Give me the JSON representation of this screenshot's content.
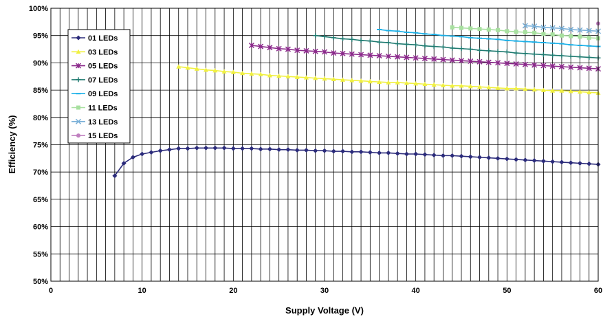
{
  "chart_data": {
    "type": "line",
    "title": "",
    "xlabel": "Supply Voltage (V)",
    "ylabel": "Efficiency (%)",
    "xlim": [
      0,
      60
    ],
    "ylim": [
      50,
      100
    ],
    "x_ticks": [
      0,
      10,
      20,
      30,
      40,
      50,
      60
    ],
    "y_ticks": [
      "50%",
      "55%",
      "60%",
      "65%",
      "70%",
      "75%",
      "80%",
      "85%",
      "90%",
      "95%",
      "100%"
    ],
    "grid": true,
    "legend_position": "left, upper-middle",
    "series": [
      {
        "name": "01 LEDs",
        "color": "#2b2b7a",
        "marker": "diamond",
        "points": [
          [
            7,
            69.3
          ],
          [
            8,
            71.6
          ],
          [
            9,
            72.7
          ],
          [
            10,
            73.3
          ],
          [
            11,
            73.6
          ],
          [
            12,
            73.9
          ],
          [
            13,
            74.1
          ],
          [
            14,
            74.3
          ],
          [
            15,
            74.3
          ],
          [
            16,
            74.4
          ],
          [
            17,
            74.4
          ],
          [
            18,
            74.4
          ],
          [
            19,
            74.4
          ],
          [
            20,
            74.3
          ],
          [
            21,
            74.3
          ],
          [
            22,
            74.3
          ],
          [
            23,
            74.2
          ],
          [
            24,
            74.2
          ],
          [
            25,
            74.1
          ],
          [
            26,
            74.1
          ],
          [
            27,
            74.0
          ],
          [
            28,
            74.0
          ],
          [
            29,
            73.9
          ],
          [
            30,
            73.9
          ],
          [
            31,
            73.8
          ],
          [
            32,
            73.8
          ],
          [
            33,
            73.7
          ],
          [
            34,
            73.7
          ],
          [
            35,
            73.6
          ],
          [
            36,
            73.5
          ],
          [
            37,
            73.5
          ],
          [
            38,
            73.4
          ],
          [
            39,
            73.3
          ],
          [
            40,
            73.3
          ],
          [
            41,
            73.2
          ],
          [
            42,
            73.1
          ],
          [
            43,
            73.0
          ],
          [
            44,
            73.0
          ],
          [
            45,
            72.9
          ],
          [
            46,
            72.8
          ],
          [
            47,
            72.7
          ],
          [
            48,
            72.6
          ],
          [
            49,
            72.5
          ],
          [
            50,
            72.4
          ],
          [
            51,
            72.3
          ],
          [
            52,
            72.2
          ],
          [
            53,
            72.1
          ],
          [
            54,
            72.0
          ],
          [
            55,
            71.9
          ],
          [
            56,
            71.8
          ],
          [
            57,
            71.7
          ],
          [
            58,
            71.6
          ],
          [
            59,
            71.5
          ],
          [
            60,
            71.4
          ]
        ]
      },
      {
        "name": "03 LEDs",
        "color": "#f0f040",
        "marker": "triangle",
        "points": [
          [
            14,
            89.3
          ],
          [
            15,
            89.1
          ],
          [
            16,
            88.9
          ],
          [
            17,
            88.7
          ],
          [
            18,
            88.6
          ],
          [
            19,
            88.4
          ],
          [
            20,
            88.3
          ],
          [
            21,
            88.1
          ],
          [
            22,
            88.0
          ],
          [
            23,
            87.9
          ],
          [
            24,
            87.7
          ],
          [
            25,
            87.6
          ],
          [
            26,
            87.5
          ],
          [
            27,
            87.4
          ],
          [
            28,
            87.3
          ],
          [
            29,
            87.2
          ],
          [
            30,
            87.1
          ],
          [
            31,
            87.0
          ],
          [
            32,
            86.9
          ],
          [
            33,
            86.8
          ],
          [
            34,
            86.7
          ],
          [
            35,
            86.6
          ],
          [
            36,
            86.5
          ],
          [
            37,
            86.4
          ],
          [
            38,
            86.4
          ],
          [
            39,
            86.3
          ],
          [
            40,
            86.2
          ],
          [
            41,
            86.1
          ],
          [
            42,
            86.0
          ],
          [
            43,
            85.9
          ],
          [
            44,
            85.8
          ],
          [
            45,
            85.8
          ],
          [
            46,
            85.7
          ],
          [
            47,
            85.6
          ],
          [
            48,
            85.5
          ],
          [
            49,
            85.4
          ],
          [
            50,
            85.3
          ],
          [
            51,
            85.3
          ],
          [
            52,
            85.2
          ],
          [
            53,
            85.1
          ],
          [
            54,
            85.0
          ],
          [
            55,
            84.9
          ],
          [
            56,
            84.9
          ],
          [
            57,
            84.8
          ],
          [
            58,
            84.7
          ],
          [
            59,
            84.6
          ],
          [
            60,
            84.5
          ]
        ]
      },
      {
        "name": "05 LEDs",
        "color": "#8b2a8b",
        "marker": "asterisk",
        "points": [
          [
            22,
            93.2
          ],
          [
            23,
            93.0
          ],
          [
            24,
            92.8
          ],
          [
            25,
            92.6
          ],
          [
            26,
            92.5
          ],
          [
            27,
            92.3
          ],
          [
            28,
            92.2
          ],
          [
            29,
            92.1
          ],
          [
            30,
            92.0
          ],
          [
            31,
            91.8
          ],
          [
            32,
            91.7
          ],
          [
            33,
            91.6
          ],
          [
            34,
            91.5
          ],
          [
            35,
            91.4
          ],
          [
            36,
            91.3
          ],
          [
            37,
            91.2
          ],
          [
            38,
            91.1
          ],
          [
            39,
            91.0
          ],
          [
            40,
            90.9
          ],
          [
            41,
            90.8
          ],
          [
            42,
            90.7
          ],
          [
            43,
            90.6
          ],
          [
            44,
            90.5
          ],
          [
            45,
            90.4
          ],
          [
            46,
            90.3
          ],
          [
            47,
            90.2
          ],
          [
            48,
            90.1
          ],
          [
            49,
            90.0
          ],
          [
            50,
            89.9
          ],
          [
            51,
            89.8
          ],
          [
            52,
            89.7
          ],
          [
            53,
            89.6
          ],
          [
            54,
            89.5
          ],
          [
            55,
            89.4
          ],
          [
            56,
            89.3
          ],
          [
            57,
            89.2
          ],
          [
            58,
            89.1
          ],
          [
            59,
            89.0
          ],
          [
            60,
            88.9
          ]
        ]
      },
      {
        "name": "07 LEDs",
        "color": "#1f7a70",
        "marker": "plus",
        "points": [
          [
            29,
            95.0
          ],
          [
            30,
            94.8
          ],
          [
            31,
            94.6
          ],
          [
            32,
            94.4
          ],
          [
            33,
            94.3
          ],
          [
            34,
            94.1
          ],
          [
            35,
            94.0
          ],
          [
            36,
            93.8
          ],
          [
            37,
            93.7
          ],
          [
            38,
            93.5
          ],
          [
            39,
            93.4
          ],
          [
            40,
            93.3
          ],
          [
            41,
            93.1
          ],
          [
            42,
            93.0
          ],
          [
            43,
            92.9
          ],
          [
            44,
            92.7
          ],
          [
            45,
            92.6
          ],
          [
            46,
            92.5
          ],
          [
            47,
            92.3
          ],
          [
            48,
            92.2
          ],
          [
            49,
            92.1
          ],
          [
            50,
            92.0
          ],
          [
            51,
            91.8
          ],
          [
            52,
            91.7
          ],
          [
            53,
            91.6
          ],
          [
            54,
            91.5
          ],
          [
            55,
            91.4
          ],
          [
            56,
            91.3
          ],
          [
            57,
            91.2
          ],
          [
            58,
            91.1
          ],
          [
            59,
            91.0
          ],
          [
            60,
            90.9
          ]
        ]
      },
      {
        "name": "09 LEDs",
        "color": "#1ab0e8",
        "marker": "dash",
        "points": [
          [
            36,
            96.1
          ],
          [
            37,
            95.9
          ],
          [
            38,
            95.8
          ],
          [
            39,
            95.6
          ],
          [
            40,
            95.5
          ],
          [
            41,
            95.3
          ],
          [
            42,
            95.2
          ],
          [
            43,
            95.0
          ],
          [
            44,
            94.9
          ],
          [
            45,
            94.8
          ],
          [
            46,
            94.6
          ],
          [
            47,
            94.5
          ],
          [
            48,
            94.4
          ],
          [
            49,
            94.3
          ],
          [
            50,
            94.1
          ],
          [
            51,
            94.0
          ],
          [
            52,
            93.9
          ],
          [
            53,
            93.8
          ],
          [
            54,
            93.7
          ],
          [
            55,
            93.6
          ],
          [
            56,
            93.5
          ],
          [
            57,
            93.3
          ],
          [
            58,
            93.2
          ],
          [
            59,
            93.1
          ],
          [
            60,
            93.0
          ]
        ]
      },
      {
        "name": "11 LEDs",
        "color": "#a8e0a0",
        "marker": "square",
        "points": [
          [
            44,
            96.5
          ],
          [
            45,
            96.4
          ],
          [
            46,
            96.3
          ],
          [
            47,
            96.2
          ],
          [
            48,
            96.1
          ],
          [
            49,
            96.0
          ],
          [
            50,
            95.8
          ],
          [
            51,
            95.7
          ],
          [
            52,
            95.6
          ],
          [
            53,
            95.5
          ],
          [
            54,
            95.3
          ],
          [
            55,
            95.2
          ],
          [
            56,
            95.0
          ],
          [
            57,
            94.9
          ],
          [
            58,
            94.8
          ],
          [
            59,
            94.6
          ],
          [
            60,
            94.5
          ]
        ]
      },
      {
        "name": "13 LEDs",
        "color": "#7ab0d8",
        "marker": "x",
        "points": [
          [
            52,
            96.8
          ],
          [
            53,
            96.7
          ],
          [
            54,
            96.5
          ],
          [
            55,
            96.4
          ],
          [
            56,
            96.3
          ],
          [
            57,
            96.1
          ],
          [
            58,
            96.0
          ],
          [
            59,
            95.9
          ],
          [
            60,
            95.8
          ]
        ]
      },
      {
        "name": "15 LEDs",
        "color": "#c080c0",
        "marker": "circle",
        "points": [
          [
            60,
            97.2
          ]
        ]
      }
    ]
  }
}
